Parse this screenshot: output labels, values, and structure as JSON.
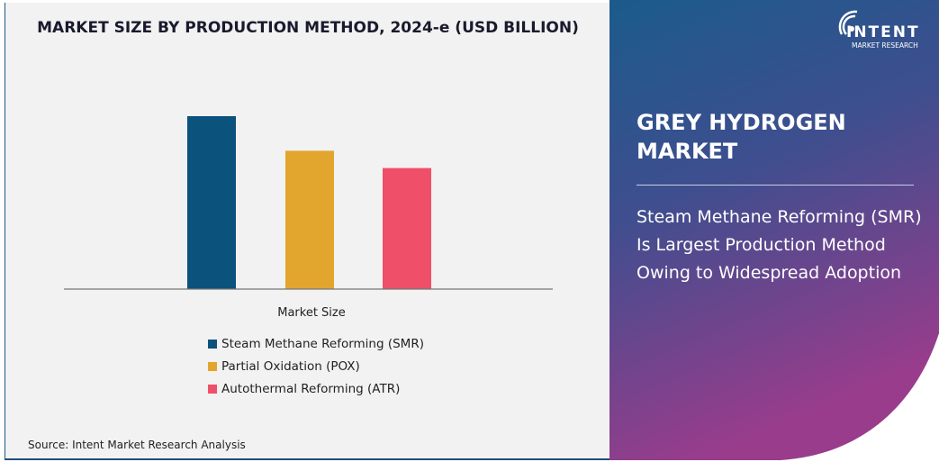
{
  "chart_data": {
    "type": "bar",
    "title": "MARKET SIZE BY PRODUCTION METHOD, 2024-e (USD BILLION)",
    "categories": [
      "Market Size"
    ],
    "series": [
      {
        "name": "Steam Methane Reforming (SMR)",
        "values": [
          100
        ],
        "color": "#0b527c"
      },
      {
        "name": "Partial Oxidation (POX)",
        "values": [
          80
        ],
        "color": "#e2a52e"
      },
      {
        "name": "Autothermal Reforming (ATR)",
        "values": [
          70
        ],
        "color": "#ef4f69"
      }
    ],
    "xlabel": "",
    "ylabel": "",
    "ylim": [
      0,
      100
    ],
    "grid": false,
    "legend": "bottom"
  },
  "source": "Source: Intent Market Research Analysis",
  "right_panel": {
    "title": "GREY HYDROGEN MARKET",
    "text": "Steam Methane Reforming (SMR) Is Largest Production Method Owing to Widespread Adoption",
    "logo": {
      "name": "INTENT",
      "sub": "MARKET RESEARCH",
      "tm": "TM"
    }
  }
}
